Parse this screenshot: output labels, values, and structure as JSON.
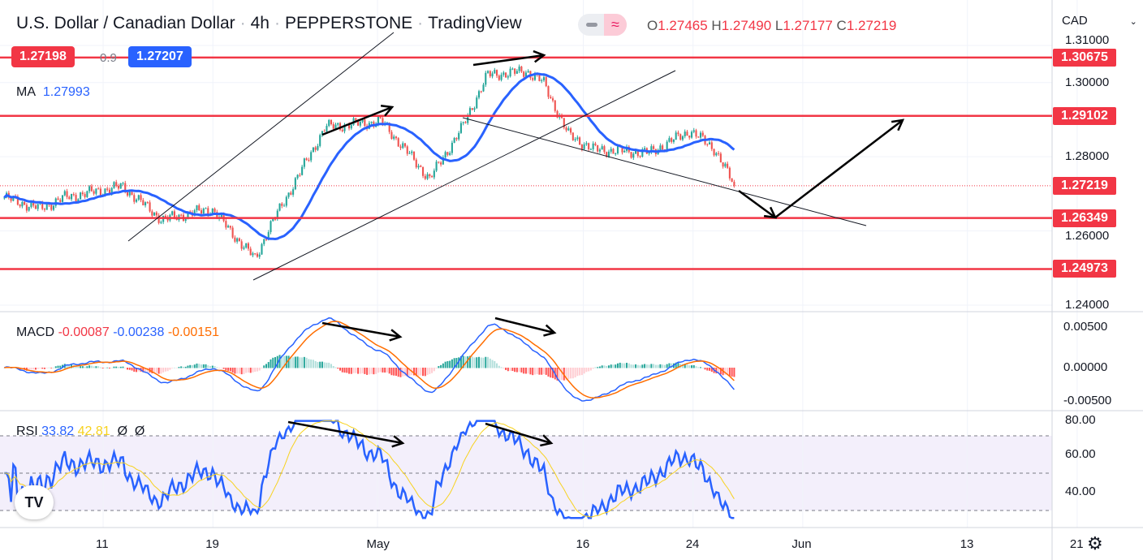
{
  "header": {
    "symbol": "U.S. Dollar / Canadian Dollar",
    "interval": "4h",
    "exchange": "PEPPERSTONE",
    "source": "TradingView",
    "bid": "1.27198",
    "spread": "0.9",
    "ask": "1.27207",
    "ohlc": {
      "o_label": "O",
      "o": "1.27465",
      "h_label": "H",
      "h": "1.27490",
      "l_label": "L",
      "l": "1.27177",
      "c_label": "C",
      "c": "1.27219"
    },
    "currency": "CAD"
  },
  "ma_legend": {
    "label": "MA",
    "value": "1.27993"
  },
  "macd_legend": {
    "label": "MACD",
    "hist": "-0.00087",
    "macd": "-0.00238",
    "signal": "-0.00151"
  },
  "rsi_legend": {
    "label": "RSI",
    "rsi": "33.82",
    "ma": "42.81",
    "a": "Ø",
    "b": "Ø"
  },
  "colors": {
    "up": "#26a69a",
    "down": "#ef5350",
    "ma": "#2962ff",
    "macd": "#2962ff",
    "signal": "#ff6d00",
    "level": "#f23645",
    "rsi": "#2962ff",
    "rsi_ma": "#f7d21e"
  },
  "chart_data": {
    "type": "candlestick",
    "x_unit": "days since Apr 11",
    "keypoints_close": [
      [
        -7.2,
        1.269
      ],
      [
        -4.6,
        1.266
      ],
      [
        -2.8,
        1.269
      ],
      [
        1.4,
        1.272
      ],
      [
        4.3,
        1.263
      ],
      [
        7.9,
        1.266
      ],
      [
        10.2,
        1.256
      ],
      [
        11.1,
        1.2525
      ],
      [
        12.0,
        1.26
      ],
      [
        16.2,
        1.288
      ],
      [
        20.3,
        1.2895
      ],
      [
        23.8,
        1.274
      ],
      [
        26.2,
        1.288
      ],
      [
        28.0,
        1.302
      ],
      [
        30.9,
        1.303
      ],
      [
        32.1,
        1.3
      ],
      [
        33.9,
        1.286
      ],
      [
        35.7,
        1.282
      ],
      [
        39.8,
        1.281
      ],
      [
        42.8,
        1.287
      ],
      [
        44.6,
        1.282
      ],
      [
        46.0,
        1.2722
      ]
    ],
    "levels": [
      "1.30675",
      "1.29102",
      "1.26349",
      "1.24973"
    ],
    "last_price": "1.27219",
    "y_ticks": [
      "1.31000",
      "1.30000",
      "1.28000",
      "1.26000",
      "1.24000"
    ],
    "macd_ticks": [
      "0.00500",
      "0.00000",
      "-0.00500"
    ],
    "rsi_ticks": [
      "80.00",
      "60.00",
      "40.00"
    ],
    "x_ticks": [
      {
        "label": "11",
        "day": 0
      },
      {
        "label": "19",
        "day": 8
      },
      {
        "label": "May",
        "day": 20
      },
      {
        "label": "16",
        "day": 35
      },
      {
        "label": "24",
        "day": 43
      },
      {
        "label": "Jun",
        "day": 51
      },
      {
        "label": "13",
        "day": 63
      },
      {
        "label": "21",
        "day": 71
      }
    ]
  }
}
